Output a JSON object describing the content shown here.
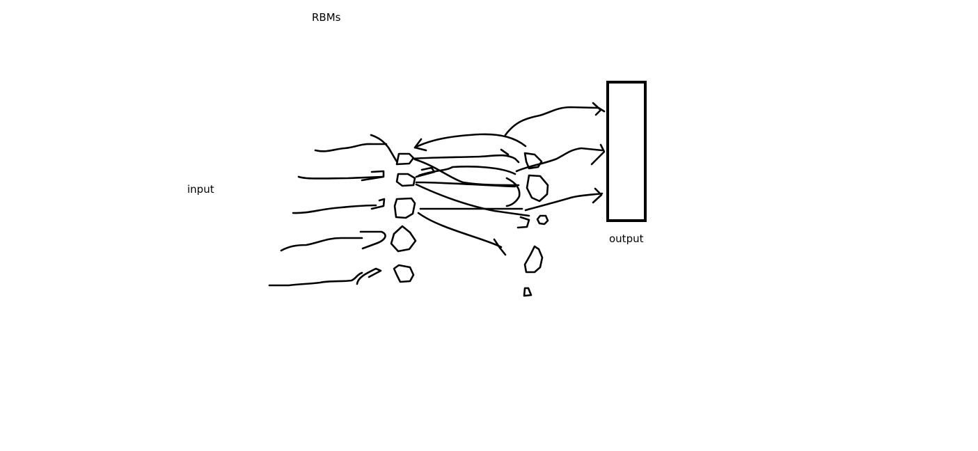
{
  "labels": {
    "title": "RBMs",
    "input": "input",
    "output": "output"
  },
  "colors": {
    "ink": "#000000",
    "background": "#ffffff"
  }
}
